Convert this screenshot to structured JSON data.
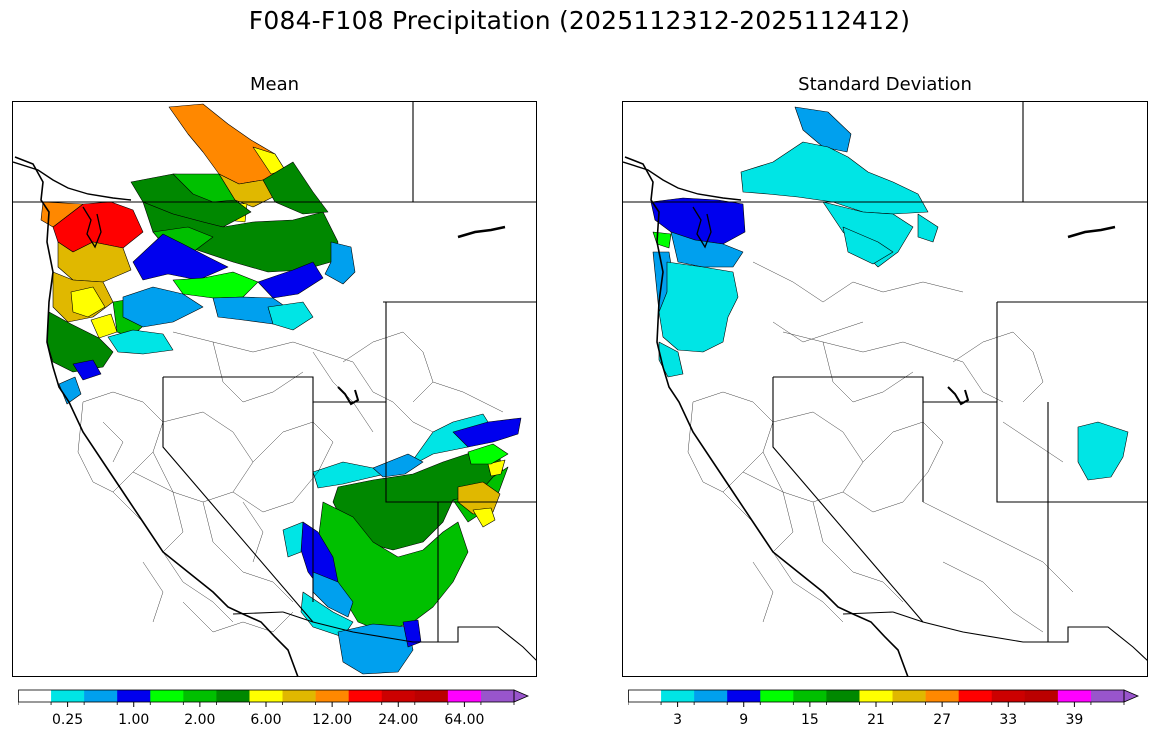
{
  "title": "F084-F108 Precipitation (2025112312-2025112412)",
  "panels": [
    {
      "id": "mean",
      "title": "Mean",
      "colorbar": {
        "colors": [
          "#ffffff",
          "#00e5e5",
          "#00a0ee",
          "#0000ee",
          "#00ff00",
          "#00c000",
          "#008800",
          "#ffff00",
          "#e0b800",
          "#ff8800",
          "#ff0000",
          "#cc0000",
          "#bb0000",
          "#ff00ff",
          "#9955cc"
        ],
        "tick_labels": [
          "0.25",
          "1.00",
          "2.00",
          "6.00",
          "12.00",
          "24.00",
          "64.00"
        ],
        "tick_bin_index": [
          1,
          3,
          5,
          7,
          9,
          11,
          13
        ],
        "extend": "max"
      }
    },
    {
      "id": "std",
      "title": "Standard Deviation",
      "colorbar": {
        "colors": [
          "#ffffff",
          "#00e5e5",
          "#00a0ee",
          "#0000ee",
          "#00ff00",
          "#00c000",
          "#008800",
          "#ffff00",
          "#e0b800",
          "#ff8800",
          "#ff0000",
          "#cc0000",
          "#bb0000",
          "#ff00ff",
          "#9955cc"
        ],
        "tick_labels": [
          "3",
          "9",
          "15",
          "21",
          "27",
          "33",
          "39"
        ],
        "tick_bin_index": [
          1,
          3,
          5,
          7,
          9,
          11,
          13
        ],
        "extend": "max"
      }
    }
  ],
  "mean_regions": [
    {
      "region": "washington-coast-cascades",
      "value_class": "red"
    },
    {
      "region": "oregon-coast",
      "value_class": "gold"
    },
    {
      "region": "northern-idaho-montana",
      "value_class": "green"
    },
    {
      "region": "british-columbia-interior",
      "value_class": "orange"
    },
    {
      "region": "snake-river-basin",
      "value_class": "blue"
    },
    {
      "region": "colorado-rockies",
      "value_class": "green"
    },
    {
      "region": "northern-new-mexico",
      "value_class": "gold"
    },
    {
      "region": "arizona-gila",
      "value_class": "light-blue"
    }
  ],
  "std_regions": [
    {
      "region": "olympic-peninsula",
      "value_class": "blue"
    },
    {
      "region": "oregon-washington-coast",
      "value_class": "cyan"
    },
    {
      "region": "british-columbia-interior",
      "value_class": "cyan"
    },
    {
      "region": "southeast-colorado",
      "value_class": "cyan"
    }
  ]
}
